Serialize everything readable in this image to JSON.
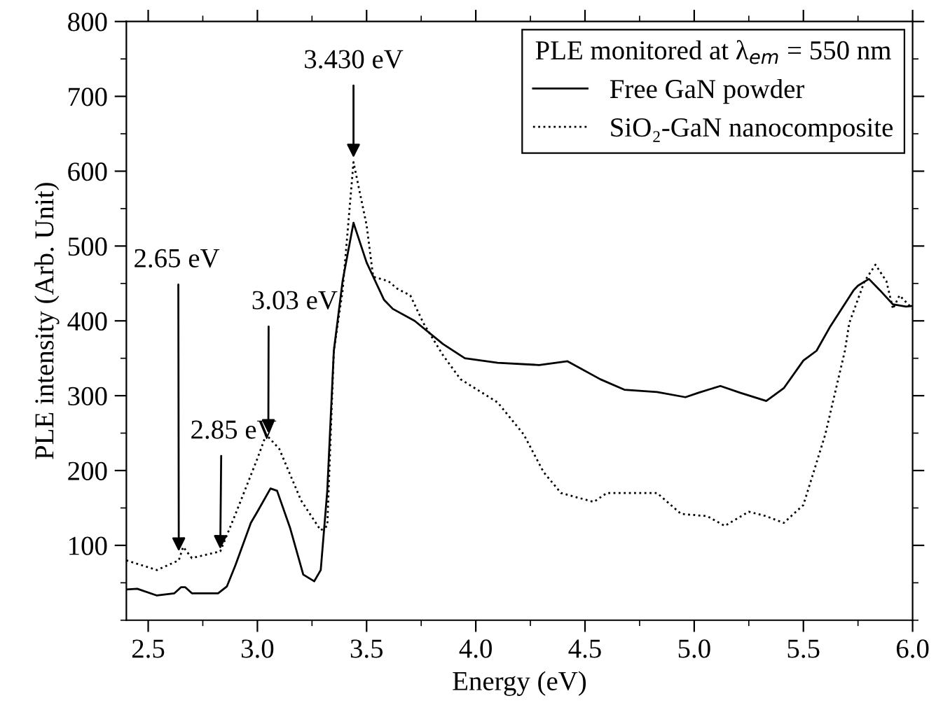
{
  "chart_data": {
    "type": "line",
    "xlabel": "Energy (eV)",
    "ylabel": "PLE intensity (Arb. Unit)",
    "legend_title": "PLE monitored at λ$_{em}$ = 550 nm",
    "legend": "top right",
    "grid": false,
    "xlim": [
      2.4,
      6.0
    ],
    "xticks": [
      {
        "value": 2.5,
        "label": "2.5"
      },
      {
        "value": 3.0,
        "label": "3.0"
      },
      {
        "value": 3.5,
        "label": "3.5"
      },
      {
        "value": 4.0,
        "label": "4.0"
      },
      {
        "value": 4.5,
        "label": "4.5"
      },
      {
        "value": 5.0,
        "label": "5.0"
      },
      {
        "value": 5.5,
        "label": "5.5"
      },
      {
        "value": 6.0,
        "label": "6.0"
      }
    ],
    "ylim": [
      0,
      800
    ],
    "yticks": [
      100,
      200,
      300,
      400,
      500,
      600,
      700,
      800
    ],
    "series": [
      {
        "name": "Free GaN powder",
        "color": "#000000",
        "line_style": "solid",
        "x": [
          2.4,
          2.45,
          2.54,
          2.62,
          2.65,
          2.67,
          2.7,
          2.82,
          2.86,
          2.9,
          2.97,
          3.0,
          3.06,
          3.09,
          3.15,
          3.21,
          3.26,
          3.29,
          3.32,
          3.35,
          3.39,
          3.44,
          3.5,
          3.58,
          3.62,
          3.72,
          3.85,
          3.95,
          4.1,
          4.29,
          4.42,
          4.57,
          4.68,
          4.83,
          4.96,
          5.02,
          5.12,
          5.21,
          5.33,
          5.41,
          5.5,
          5.56,
          5.62,
          5.73,
          5.75,
          5.8,
          5.85,
          5.91,
          5.97,
          6.0
        ],
        "values": [
          41,
          42,
          33,
          36,
          44,
          44,
          36,
          36,
          45,
          74,
          130,
          145,
          176,
          173,
          123,
          61,
          52,
          67,
          173,
          360,
          453,
          531,
          478,
          428,
          416,
          400,
          369,
          350,
          344,
          341,
          346,
          322,
          308,
          305,
          298,
          304,
          313,
          304,
          293,
          310,
          347,
          360,
          391,
          441,
          447,
          456,
          441,
          422,
          419,
          420
        ]
      },
      {
        "name": "SiO₂-GaN nanocomposite",
        "color": "#000000",
        "line_style": "dotted",
        "x": [
          2.4,
          2.54,
          2.64,
          2.66,
          2.7,
          2.83,
          2.9,
          3.0,
          3.04,
          3.1,
          3.2,
          3.29,
          3.32,
          3.35,
          3.39,
          3.44,
          3.5,
          3.53,
          3.6,
          3.64,
          3.7,
          3.76,
          3.85,
          3.93,
          4.1,
          4.22,
          4.31,
          4.39,
          4.54,
          4.6,
          4.69,
          4.83,
          4.94,
          5.06,
          5.14,
          5.25,
          5.33,
          5.41,
          5.5,
          5.6,
          5.69,
          5.71,
          5.78,
          5.83,
          5.88,
          5.91,
          5.94,
          6.0
        ],
        "values": [
          80,
          67,
          80,
          98,
          83,
          92,
          142,
          216,
          248,
          229,
          160,
          120,
          126,
          360,
          440,
          612,
          528,
          459,
          453,
          443,
          434,
          397,
          354,
          322,
          291,
          248,
          198,
          170,
          158,
          170,
          170,
          170,
          142,
          139,
          126,
          145,
          139,
          130,
          154,
          248,
          360,
          397,
          453,
          475,
          453,
          416,
          434,
          416
        ]
      }
    ],
    "annotations": [
      {
        "text": "2.65 eV",
        "x": 2.64,
        "y": 92
      },
      {
        "text": "2.85 eV",
        "x": 2.83,
        "y": 95
      },
      {
        "text": "3.03 eV",
        "x": 3.05,
        "y": 250
      },
      {
        "text": "3.430 eV",
        "x": 3.44,
        "y": 618
      }
    ]
  }
}
